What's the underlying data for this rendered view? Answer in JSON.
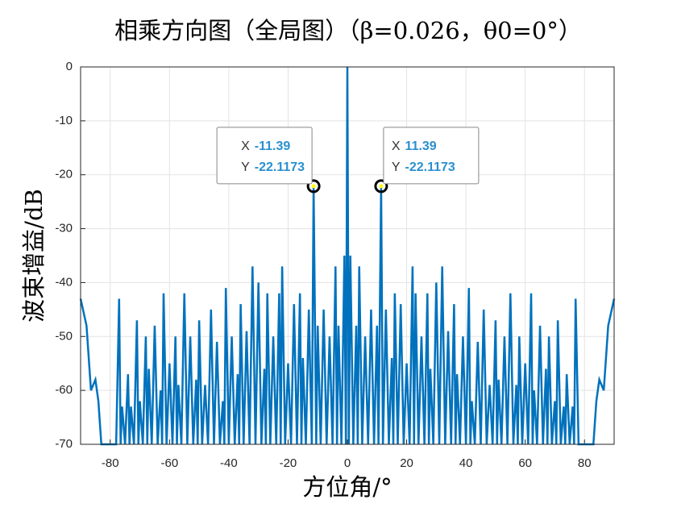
{
  "chart_data": {
    "type": "line",
    "title": "相乘方向图（全局图）（β=0.026，θ0=0°）",
    "x_label": "方位角/°",
    "y_label": "波束增益/dB",
    "color": "#0072BD",
    "grid": true,
    "xlim": [
      -90,
      90
    ],
    "ylim": [
      -70,
      0
    ],
    "xticks": [
      -80,
      -60,
      -40,
      -20,
      0,
      20,
      40,
      60,
      80
    ],
    "yticks": [
      0,
      -10,
      -20,
      -30,
      -40,
      -50,
      -60,
      -70
    ],
    "x": [
      -90,
      -88,
      -86.5,
      -85,
      -84,
      -83,
      -78,
      -77,
      -76.5,
      -76,
      -75,
      -74,
      -73.5,
      -73,
      -72,
      -71,
      -70.5,
      -70,
      -69,
      -68,
      -67.5,
      -67,
      -66,
      -65,
      -64,
      -63,
      -62.5,
      -62,
      -61,
      -60,
      -59,
      -58,
      -57.5,
      -57,
      -56,
      -55,
      -54,
      -53,
      -52,
      -51,
      -50.5,
      -50,
      -49,
      -48,
      -47,
      -46,
      -45,
      -44,
      -43,
      -42,
      -41.5,
      -41,
      -40,
      -39,
      -38,
      -37,
      -36.5,
      -36,
      -35,
      -34,
      -33,
      -32,
      -31,
      -30,
      -29,
      -28,
      -27.5,
      -27,
      -26,
      -25,
      -24,
      -23,
      -22.5,
      -22,
      -21,
      -20,
      -19,
      -18,
      -17,
      -16,
      -15.5,
      -15,
      -14,
      -13,
      -12,
      -11.39,
      -10.5,
      -10,
      -9,
      -8,
      -7,
      -6,
      -5,
      -4,
      -3.5,
      -3,
      -2,
      -1,
      -0.5,
      0,
      0.5,
      1,
      2,
      3,
      3.5,
      4,
      5,
      6,
      7,
      8,
      9,
      10,
      10.5,
      11.39,
      12,
      13,
      14,
      15,
      15.5,
      16,
      17,
      18,
      19,
      20,
      21,
      22,
      22.5,
      23,
      24,
      25,
      26,
      27,
      27.5,
      28,
      29,
      30,
      31,
      32,
      33,
      34,
      35,
      36,
      36.5,
      37,
      38,
      39,
      40,
      41,
      41.5,
      42,
      43,
      44,
      45,
      46,
      47,
      48,
      49,
      50,
      50.5,
      51,
      52,
      53,
      54,
      55,
      56,
      57,
      57.5,
      58,
      59,
      60,
      61,
      62,
      62.5,
      63,
      64,
      65,
      66,
      67,
      67.5,
      68,
      69,
      70,
      70.5,
      71,
      72,
      73,
      73.5,
      74,
      75,
      76,
      76.5,
      77,
      78,
      83,
      84,
      85,
      86.5,
      88,
      90
    ],
    "values": [
      -43,
      -48,
      -60,
      -58,
      -62,
      -70,
      -70,
      -43,
      -70,
      -63,
      -70,
      -57,
      -70,
      -63,
      -70,
      -47,
      -70,
      -62,
      -70,
      -50,
      -70,
      -56,
      -70,
      -48,
      -70,
      -60,
      -70,
      -42,
      -70,
      -55,
      -70,
      -50,
      -70,
      -59,
      -70,
      -42,
      -70,
      -50,
      -70,
      -58,
      -70,
      -47,
      -70,
      -59,
      -70,
      -45,
      -70,
      -51,
      -70,
      -62,
      -70,
      -41,
      -70,
      -50,
      -70,
      -57,
      -70,
      -44,
      -70,
      -49,
      -70,
      -37,
      -70,
      -40,
      -70,
      -56,
      -70,
      -42,
      -70,
      -50,
      -70,
      -42,
      -70,
      -37,
      -70,
      -55,
      -70,
      -44,
      -70,
      -42,
      -70,
      -54,
      -70,
      -45,
      -70,
      -22.1173,
      -70,
      -48,
      -70,
      -45,
      -70,
      -50,
      -70,
      -37,
      -70,
      -48,
      -70,
      -35,
      -70,
      0,
      -70,
      -35,
      -70,
      -48,
      -70,
      -37,
      -70,
      -50,
      -70,
      -45,
      -70,
      -48,
      -70,
      -22.1173,
      -70,
      -45,
      -70,
      -54,
      -70,
      -42,
      -70,
      -44,
      -70,
      -55,
      -70,
      -37,
      -70,
      -42,
      -70,
      -50,
      -70,
      -42,
      -70,
      -56,
      -70,
      -40,
      -70,
      -37,
      -70,
      -49,
      -70,
      -44,
      -70,
      -57,
      -70,
      -50,
      -70,
      -41,
      -70,
      -62,
      -70,
      -51,
      -70,
      -45,
      -70,
      -59,
      -70,
      -47,
      -70,
      -58,
      -70,
      -50,
      -70,
      -42,
      -70,
      -59,
      -70,
      -50,
      -70,
      -55,
      -70,
      -42,
      -70,
      -60,
      -70,
      -48,
      -70,
      -56,
      -70,
      -50,
      -70,
      -62,
      -70,
      -47,
      -70,
      -63,
      -70,
      -57,
      -70,
      -63,
      -70,
      -43,
      -70,
      -70,
      -62,
      -58,
      -60,
      -48,
      -43
    ],
    "annotations": [
      {
        "x_label": "X",
        "x": -11.39,
        "y_label": "Y",
        "y": -22.1173
      },
      {
        "x_label": "X",
        "x": 11.39,
        "y_label": "Y",
        "y": -22.1173
      }
    ]
  }
}
